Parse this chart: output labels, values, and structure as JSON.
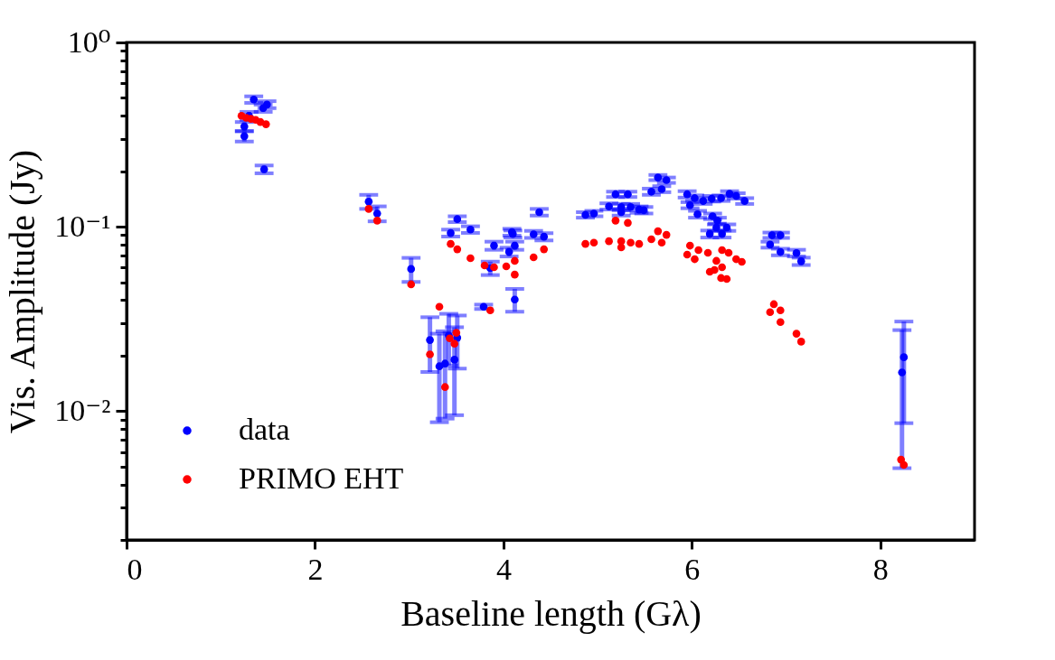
{
  "chart_data": {
    "type": "scatter",
    "xlabel": "Baseline length (Gλ)",
    "ylabel": "Vis. Amplitude (Jy)",
    "log": "y",
    "xlim": [
      0,
      9
    ],
    "xticks": [
      0,
      2,
      4,
      6,
      8
    ],
    "ylim": [
      0.002,
      1
    ],
    "yticks": [
      {
        "value": 1,
        "label": "10⁰"
      },
      {
        "value": 0.9,
        "label": null
      },
      {
        "value": 0.8,
        "label": null
      },
      {
        "value": 0.7,
        "label": null
      },
      {
        "value": 0.6,
        "label": null
      },
      {
        "value": 0.5,
        "label": null
      },
      {
        "value": 0.4,
        "label": null
      },
      {
        "value": 0.3,
        "label": null
      },
      {
        "value": 0.2,
        "label": null
      },
      {
        "value": 0.1,
        "label": "10⁻¹"
      },
      {
        "value": 0.09,
        "label": null
      },
      {
        "value": 0.08,
        "label": null
      },
      {
        "value": 0.07,
        "label": null
      },
      {
        "value": 0.06,
        "label": null
      },
      {
        "value": 0.05,
        "label": null
      },
      {
        "value": 0.04,
        "label": null
      },
      {
        "value": 0.03,
        "label": null
      },
      {
        "value": 0.02,
        "label": null
      },
      {
        "value": 0.01,
        "label": "10⁻²"
      },
      {
        "value": 0.009,
        "label": null
      },
      {
        "value": 0.008,
        "label": null
      },
      {
        "value": 0.007,
        "label": null
      },
      {
        "value": 0.006,
        "label": null
      },
      {
        "value": 0.005,
        "label": null
      },
      {
        "value": 0.004,
        "label": null
      },
      {
        "value": 0.003,
        "label": null
      },
      {
        "value": 0.002,
        "label": null
      }
    ],
    "grid": false,
    "legend": "bottom left",
    "marker": "circle",
    "series": [
      {
        "name": "data",
        "color": "#0000ff",
        "x": [
          1.25,
          1.25,
          1.3,
          1.35,
          1.45,
          1.49,
          1.46,
          2.57,
          2.66,
          3.02,
          3.22,
          3.32,
          3.38,
          3.42,
          3.48,
          3.51,
          3.44,
          3.51,
          3.65,
          3.79,
          3.86,
          3.9,
          4.06,
          4.09,
          4.1,
          4.12,
          4.12,
          4.32,
          4.38,
          4.43,
          4.87,
          4.96,
          5.12,
          5.19,
          5.25,
          5.25,
          5.32,
          5.35,
          5.44,
          5.49,
          5.57,
          5.64,
          5.68,
          5.73,
          5.95,
          5.98,
          6.03,
          6.06,
          6.12,
          6.19,
          6.21,
          6.22,
          6.26,
          6.27,
          6.31,
          6.32,
          6.37,
          6.4,
          6.47,
          6.56,
          6.83,
          6.85,
          6.94,
          6.94,
          7.11,
          7.16,
          8.23,
          8.25
        ],
        "values": [
          0.31,
          0.35,
          0.4,
          0.49,
          0.44,
          0.46,
          0.205,
          0.137,
          0.118,
          0.059,
          0.0243,
          0.0175,
          0.0181,
          0.0257,
          0.019,
          0.025,
          0.0925,
          0.11,
          0.0966,
          0.0368,
          0.0597,
          0.079,
          0.073,
          0.0935,
          0.0914,
          0.079,
          0.0403,
          0.091,
          0.12,
          0.0883,
          0.116,
          0.118,
          0.129,
          0.15,
          0.128,
          0.12,
          0.15,
          0.128,
          0.124,
          0.123,
          0.155,
          0.185,
          0.16,
          0.179,
          0.15,
          0.131,
          0.143,
          0.117,
          0.138,
          0.0914,
          0.142,
          0.114,
          0.099,
          0.108,
          0.143,
          0.0914,
          0.099,
          0.151,
          0.147,
          0.138,
          0.08,
          0.09,
          0.09,
          0.073,
          0.072,
          0.065,
          0.0162,
          0.0196
        ],
        "errors": [
          0.02,
          0.02,
          0.02,
          0.02,
          0.02,
          0.02,
          0.01,
          0.012,
          0.011,
          0.0088,
          0.008,
          0.0088,
          0.009,
          0.008,
          0.0095,
          0.008,
          0.004,
          0.004,
          0.004,
          0.001,
          0.005,
          0.004,
          0.004,
          0.004,
          0.004,
          0.004,
          0.0057,
          0.004,
          0.005,
          0.004,
          0.004,
          0.004,
          0.005,
          0.005,
          0.005,
          0.005,
          0.005,
          0.005,
          0.005,
          0.005,
          0.006,
          0.006,
          0.006,
          0.006,
          0.006,
          0.005,
          0.005,
          0.005,
          0.005,
          0.004,
          0.005,
          0.004,
          0.004,
          0.004,
          0.005,
          0.004,
          0.004,
          0.005,
          0.005,
          0.005,
          0.003,
          0.003,
          0.003,
          0.003,
          0.003,
          0.003,
          0.0113,
          0.011
        ]
      },
      {
        "name": "PRIMO EHT",
        "color": "#ff0000",
        "x": [
          1.22,
          1.27,
          1.32,
          1.37,
          1.42,
          1.48,
          2.57,
          2.66,
          3.02,
          3.22,
          3.32,
          3.38,
          3.43,
          3.48,
          3.5,
          3.86,
          3.44,
          3.51,
          3.65,
          3.8,
          3.9,
          4.03,
          4.12,
          4.12,
          4.32,
          4.43,
          4.87,
          4.96,
          5.12,
          5.19,
          5.25,
          5.25,
          5.32,
          5.35,
          5.44,
          5.57,
          5.64,
          5.68,
          5.73,
          5.95,
          5.98,
          6.03,
          6.07,
          6.17,
          6.19,
          6.24,
          6.26,
          6.31,
          6.32,
          6.32,
          6.37,
          6.39,
          6.47,
          6.53,
          6.83,
          6.87,
          6.94,
          6.94,
          7.11,
          7.16,
          8.22,
          8.25
        ],
        "values": [
          0.4,
          0.39,
          0.385,
          0.38,
          0.37,
          0.36,
          0.125,
          0.108,
          0.0487,
          0.0203,
          0.0368,
          0.0135,
          0.0248,
          0.0232,
          0.0266,
          0.0352,
          0.0807,
          0.0755,
          0.0675,
          0.0617,
          0.0603,
          0.061,
          0.0653,
          0.055,
          0.0683,
          0.0755,
          0.0807,
          0.082,
          0.0835,
          0.108,
          0.0835,
          0.0773,
          0.105,
          0.082,
          0.0807,
          0.0855,
          0.0946,
          0.082,
          0.0904,
          0.0706,
          0.079,
          0.0667,
          0.0747,
          0.0722,
          0.057,
          0.0583,
          0.0653,
          0.0527,
          0.0747,
          0.0603,
          0.0521,
          0.0722,
          0.0667,
          0.0645,
          0.0344,
          0.038,
          0.0352,
          0.0304,
          0.0263,
          0.0238,
          0.00545,
          0.0051
        ]
      }
    ]
  }
}
